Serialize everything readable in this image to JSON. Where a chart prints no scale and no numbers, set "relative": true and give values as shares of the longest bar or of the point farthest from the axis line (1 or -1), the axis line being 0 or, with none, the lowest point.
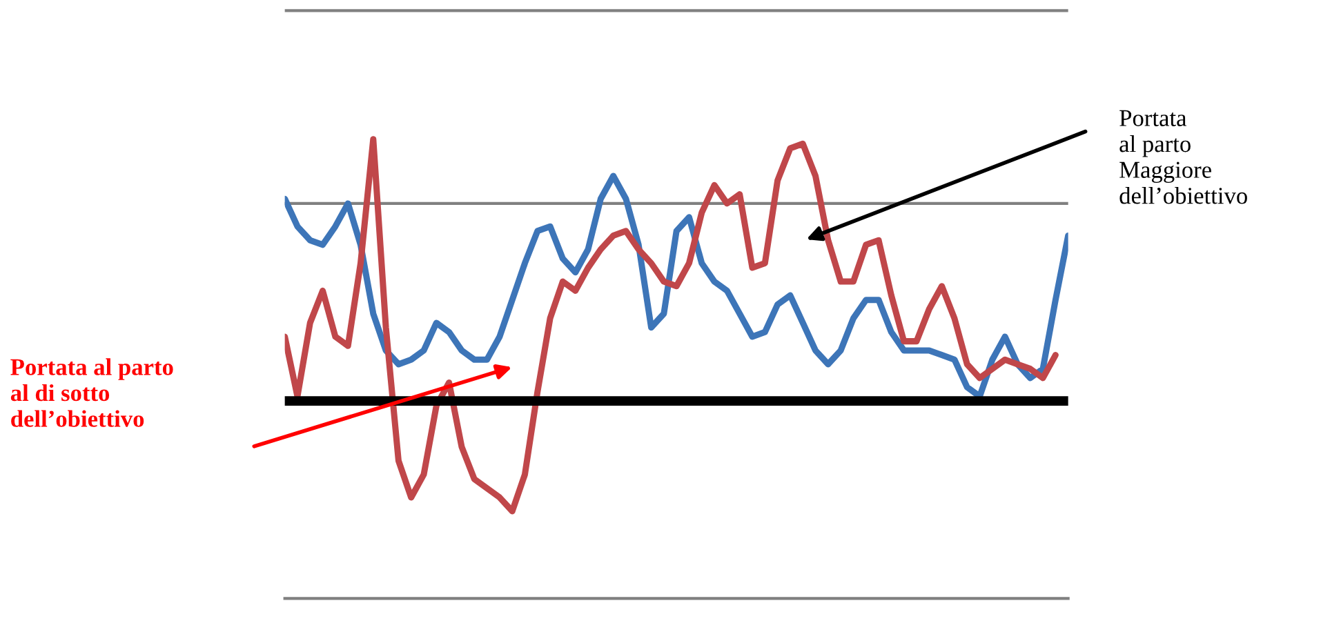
{
  "chart_data": {
    "type": "line",
    "relative": true,
    "categories": [
      null,
      null,
      null,
      null,
      null,
      null,
      null,
      null,
      null,
      null,
      null,
      null,
      null,
      null,
      null,
      null,
      null,
      null,
      null,
      null,
      null,
      null,
      null,
      null,
      null,
      null,
      null,
      null,
      null,
      null,
      null,
      null,
      null,
      null,
      null,
      null,
      null,
      null,
      null,
      null,
      null,
      null,
      null,
      null,
      null,
      null,
      null,
      null,
      null,
      null,
      null,
      null,
      null,
      null,
      null,
      null,
      null,
      null,
      null,
      null,
      null,
      null,
      null
    ],
    "series": [
      {
        "color": "#3d75b8",
        "values": [
          0.87,
          0.81,
          0.78,
          0.77,
          0.81,
          0.86,
          0.77,
          0.62,
          0.54,
          0.51,
          0.52,
          0.54,
          0.6,
          0.58,
          0.54,
          0.52,
          0.52,
          0.57,
          0.65,
          0.73,
          0.8,
          0.81,
          0.74,
          0.71,
          0.76,
          0.87,
          0.92,
          0.87,
          0.77,
          0.59,
          0.62,
          0.8,
          0.83,
          0.73,
          0.69,
          0.67,
          0.62,
          0.57,
          0.58,
          0.64,
          0.66,
          0.6,
          0.54,
          0.51,
          0.54,
          0.61,
          0.65,
          0.65,
          0.58,
          0.54,
          0.54,
          0.54,
          0.53,
          0.52,
          0.46,
          0.44,
          0.52,
          0.57,
          0.51,
          0.48,
          0.5,
          0.65,
          0.79
        ]
      },
      {
        "color": "#c0474a",
        "values": [
          0.57,
          0.44,
          0.6,
          0.67,
          0.57,
          0.55,
          0.73,
          1.0,
          0.59,
          0.3,
          0.22,
          0.27,
          0.42,
          0.47,
          0.33,
          0.26,
          0.24,
          0.22,
          0.19,
          0.27,
          0.45,
          0.61,
          0.69,
          0.67,
          0.72,
          0.76,
          0.79,
          0.8,
          0.76,
          0.73,
          0.69,
          0.68,
          0.73,
          0.84,
          0.9,
          0.86,
          0.88,
          0.72,
          0.73,
          0.91,
          0.98,
          0.99,
          0.92,
          0.78,
          0.69,
          0.69,
          0.77,
          0.78,
          0.66,
          0.56,
          0.56,
          0.63,
          0.68,
          0.61,
          0.51,
          0.48,
          0.5,
          0.52,
          0.51,
          0.5,
          0.48,
          0.53,
          null
        ]
      }
    ],
    "ref_lines": [
      {
        "axis": "y",
        "value": 0.43,
        "color": "#000000"
      },
      {
        "axis": "y",
        "value": 0.86,
        "color": "#808080"
      },
      {
        "axis": "y",
        "value": 1.28,
        "color": "#808080"
      }
    ],
    "annotations": [
      "Portata\nal parto\nMaggiore\ndell’obiettivo",
      "Portata al parto\nal di sotto\ndell’obiettivo"
    ]
  }
}
